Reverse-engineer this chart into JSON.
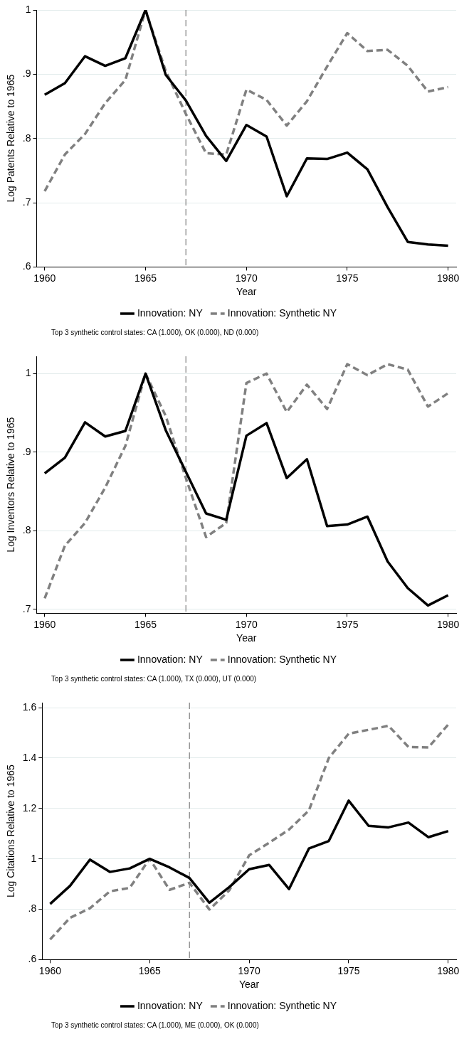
{
  "chart_data": [
    {
      "type": "line",
      "ylabel": "Log Patents Relative to 1965",
      "xlabel": "Year",
      "x": [
        1960,
        1961,
        1962,
        1963,
        1964,
        1965,
        1966,
        1967,
        1968,
        1969,
        1970,
        1971,
        1972,
        1973,
        1974,
        1975,
        1976,
        1977,
        1978,
        1979,
        1980
      ],
      "series": [
        {
          "name": "Innovation: NY",
          "color": "#000000",
          "line_style": "solid",
          "values": [
            0.868,
            0.886,
            0.928,
            0.913,
            0.925,
            1.0,
            0.899,
            0.859,
            0.804,
            0.765,
            0.821,
            0.803,
            0.71,
            0.769,
            0.768,
            0.778,
            0.752,
            0.693,
            0.639,
            0.635,
            0.633
          ]
        },
        {
          "name": "Innovation: Synthetic NY",
          "color": "#808080",
          "line_style": "dashed",
          "values": [
            0.718,
            0.775,
            0.807,
            0.855,
            0.891,
            1.0,
            0.905,
            0.838,
            0.777,
            0.775,
            0.876,
            0.86,
            0.82,
            0.858,
            0.912,
            0.964,
            0.936,
            0.938,
            0.913,
            0.873,
            0.88
          ]
        }
      ],
      "xlim": [
        1959.6,
        1980.4
      ],
      "xticks": [
        1960,
        1965,
        1970,
        1975,
        1980
      ],
      "ylim": [
        0.6,
        1.0
      ],
      "yticks": [
        {
          "value": 0.6,
          "label": ".6"
        },
        {
          "value": 0.7,
          "label": ".7"
        },
        {
          "value": 0.8,
          "label": ".8"
        },
        {
          "value": 0.9,
          "label": ".9"
        },
        1
      ],
      "grid": "y",
      "legend": "bottom",
      "marker": "none",
      "ref_lines": [
        {
          "axis": "x",
          "value": 1967,
          "color": "#808080",
          "line_style": "dashed"
        }
      ],
      "annotations": [
        "Top 3 synthetic control states: CA (1.000), OK (0.000), ND (0.000)"
      ]
    },
    {
      "type": "line",
      "ylabel": "Log Inventors Relative to 1965",
      "xlabel": "Year",
      "x": [
        1960,
        1961,
        1962,
        1963,
        1964,
        1965,
        1966,
        1967,
        1968,
        1969,
        1970,
        1971,
        1972,
        1973,
        1974,
        1975,
        1976,
        1977,
        1978,
        1979,
        1980
      ],
      "series": [
        {
          "name": "Innovation: NY",
          "color": "#000000",
          "line_style": "solid",
          "values": [
            0.873,
            0.893,
            0.938,
            0.92,
            0.927,
            1.0,
            0.928,
            0.875,
            0.822,
            0.814,
            0.921,
            0.937,
            0.867,
            0.891,
            0.806,
            0.808,
            0.818,
            0.761,
            0.727,
            0.705,
            0.718
          ]
        },
        {
          "name": "Innovation: Synthetic NY",
          "color": "#808080",
          "line_style": "dashed",
          "values": [
            0.714,
            0.781,
            0.81,
            0.855,
            0.908,
            1.0,
            0.946,
            0.867,
            0.792,
            0.81,
            0.988,
            1.0,
            0.951,
            0.986,
            0.955,
            1.012,
            0.998,
            1.012,
            1.005,
            0.958,
            0.975
          ]
        }
      ],
      "xlim": [
        1959.6,
        1980.4
      ],
      "xticks": [
        1960,
        1965,
        1970,
        1975,
        1980
      ],
      "ylim": [
        0.695,
        1.022
      ],
      "yticks": [
        {
          "value": 0.7,
          "label": ".7"
        },
        {
          "value": 0.8,
          "label": ".8"
        },
        {
          "value": 0.9,
          "label": ".9"
        },
        1
      ],
      "grid": "y",
      "legend": "bottom",
      "marker": "none",
      "ref_lines": [
        {
          "axis": "x",
          "value": 1967,
          "color": "#808080",
          "line_style": "dashed"
        }
      ],
      "annotations": [
        "Top 3 synthetic control states: CA (1.000), TX (0.000), UT (0.000)"
      ]
    },
    {
      "type": "line",
      "ylabel": "Log Citations Relative to 1965",
      "xlabel": "Year",
      "x": [
        1960,
        1961,
        1962,
        1963,
        1964,
        1965,
        1966,
        1967,
        1968,
        1969,
        1970,
        1971,
        1972,
        1973,
        1974,
        1975,
        1976,
        1977,
        1978,
        1979,
        1980
      ],
      "series": [
        {
          "name": "Innovation: NY",
          "color": "#000000",
          "line_style": "solid",
          "values": [
            0.821,
            0.893,
            0.997,
            0.948,
            0.962,
            1.0,
            0.966,
            0.924,
            0.826,
            0.888,
            0.959,
            0.976,
            0.88,
            1.041,
            1.071,
            1.231,
            1.131,
            1.125,
            1.144,
            1.086,
            1.11
          ]
        },
        {
          "name": "Innovation: Synthetic NY",
          "color": "#808080",
          "line_style": "dashed",
          "values": [
            0.68,
            0.766,
            0.804,
            0.871,
            0.885,
            1.0,
            0.877,
            0.905,
            0.799,
            0.875,
            1.014,
            1.064,
            1.116,
            1.192,
            1.4,
            1.497,
            1.512,
            1.528,
            1.444,
            1.442,
            1.533
          ]
        }
      ],
      "xlim": [
        1959.6,
        1980.4
      ],
      "xticks": [
        1960,
        1965,
        1970,
        1975,
        1980
      ],
      "ylim": [
        0.6,
        1.62
      ],
      "yticks": [
        {
          "value": 0.6,
          "label": ".6"
        },
        {
          "value": 0.8,
          "label": ".8"
        },
        1,
        1.2,
        1.4,
        1.6
      ],
      "grid": "y",
      "legend": "bottom",
      "marker": "none",
      "ref_lines": [
        {
          "axis": "x",
          "value": 1967,
          "color": "#808080",
          "line_style": "dashed"
        }
      ],
      "annotations": [
        "Top 3 synthetic control states: CA (1.000), ME (0.000), OK (0.000)"
      ]
    }
  ]
}
